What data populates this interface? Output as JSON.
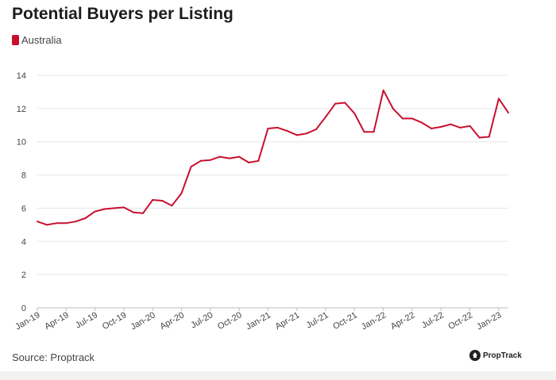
{
  "title": "Potential Buyers per Listing",
  "source": "Source: Proptrack",
  "logo_text": "PropTrack",
  "colors": {
    "series": "#c8102e",
    "grid": "#e6e6e6",
    "text": "#444444"
  },
  "chart_data": {
    "type": "line",
    "title": "Potential Buyers per Listing",
    "xlabel": "",
    "ylabel": "",
    "ylim": [
      0,
      14
    ],
    "yticks": [
      0,
      2,
      4,
      6,
      8,
      10,
      12,
      14
    ],
    "grid": true,
    "legend_position": "top-left",
    "x": [
      "Jan-19",
      "Feb-19",
      "Mar-19",
      "Apr-19",
      "May-19",
      "Jun-19",
      "Jul-19",
      "Aug-19",
      "Sep-19",
      "Oct-19",
      "Nov-19",
      "Dec-19",
      "Jan-20",
      "Feb-20",
      "Mar-20",
      "Apr-20",
      "May-20",
      "Jun-20",
      "Jul-20",
      "Aug-20",
      "Sep-20",
      "Oct-20",
      "Nov-20",
      "Dec-20",
      "Jan-21",
      "Feb-21",
      "Mar-21",
      "Apr-21",
      "May-21",
      "Jun-21",
      "Jul-21",
      "Aug-21",
      "Sep-21",
      "Oct-21",
      "Nov-21",
      "Dec-21",
      "Jan-22",
      "Feb-22",
      "Mar-22",
      "Apr-22",
      "May-22",
      "Jun-22",
      "Jul-22",
      "Aug-22",
      "Sep-22",
      "Oct-22",
      "Nov-22",
      "Dec-22",
      "Jan-23",
      "Feb-23"
    ],
    "x_tick_labels": [
      "Jan-19",
      "Apr-19",
      "Jul-19",
      "Oct-19",
      "Jan-20",
      "Apr-20",
      "Jul-20",
      "Oct-20",
      "Jan-21",
      "Apr-21",
      "Jul-21",
      "Oct-21",
      "Jan-22",
      "Apr-22",
      "Jul-22",
      "Oct-22",
      "Jan-23"
    ],
    "series": [
      {
        "name": "Australia",
        "values": [
          5.2,
          5.0,
          5.1,
          5.1,
          5.2,
          5.4,
          5.8,
          5.95,
          6.0,
          6.05,
          5.75,
          5.7,
          6.5,
          6.45,
          6.15,
          6.9,
          8.5,
          8.85,
          8.9,
          9.1,
          9.0,
          9.1,
          8.75,
          8.85,
          10.8,
          10.85,
          10.65,
          10.4,
          10.5,
          10.75,
          11.5,
          12.3,
          12.35,
          11.7,
          10.6,
          10.6,
          13.1,
          12.0,
          11.4,
          11.4,
          11.15,
          10.8,
          10.9,
          11.05,
          10.85,
          10.95,
          10.25,
          10.3,
          12.6,
          11.75
        ]
      }
    ]
  }
}
